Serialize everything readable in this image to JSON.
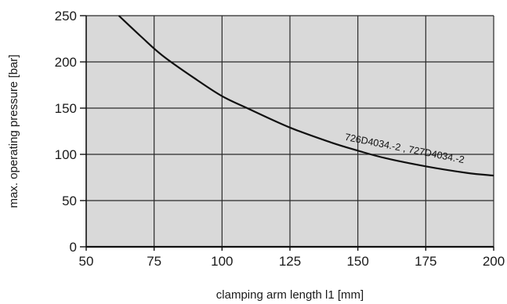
{
  "chart_data": {
    "type": "line",
    "title": "",
    "xlabel": "clamping arm length l1 [mm]",
    "ylabel": "max. operating pressure [bar]",
    "xlim": [
      50,
      200
    ],
    "ylim": [
      0,
      250
    ],
    "x_ticks": [
      50,
      75,
      100,
      125,
      150,
      175,
      200
    ],
    "y_ticks": [
      0,
      50,
      100,
      150,
      200,
      250
    ],
    "x_tick_labels": [
      "50",
      "75",
      "100",
      "125",
      "150",
      "175",
      "200"
    ],
    "y_tick_labels": [
      "0",
      "50",
      "100",
      "150",
      "200",
      "250"
    ],
    "grid": true,
    "plot_background": "#d9d9d9",
    "line_color": "#111111",
    "series": [
      {
        "name": "726D4034.-2 , 727D4034.-2",
        "x": [
          62,
          70,
          78,
          90,
          100,
          110,
          125,
          140,
          150,
          160,
          175,
          190,
          200
        ],
        "y": [
          250,
          228,
          207,
          182,
          163,
          149,
          129,
          113,
          104,
          96,
          87,
          80,
          77
        ]
      }
    ],
    "annotations": [
      {
        "text": "726D4034.-2 , 727D4034.-2",
        "x": 167,
        "y": 103,
        "rotation_deg": 11
      }
    ]
  }
}
